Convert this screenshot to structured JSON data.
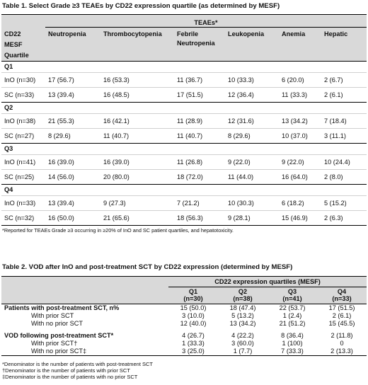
{
  "table1": {
    "title": "Table 1. Select Grade ≥3 TEAEs by CD22 expression quartile (as determined by MESF)",
    "teaes_label": "TEAEs*",
    "first_col_header": [
      "CD22",
      "MESF",
      "Quartile"
    ],
    "columns": [
      "Neutropenia",
      "Thrombocytopenia",
      "Febrile Neutropenia",
      "Leukopenia",
      "Anemia",
      "Hepatic"
    ],
    "groups": [
      {
        "quartile": "Q1",
        "rows": [
          {
            "arm": "InO (n=30)",
            "values": [
              "17 (56.7)",
              "16 (53.3)",
              "11 (36.7)",
              "10 (33.3)",
              "6 (20.0)",
              "2 (6.7)"
            ]
          },
          {
            "arm": "SC (n=33)",
            "values": [
              "13 (39.4)",
              "16 (48.5)",
              "17 (51.5)",
              "12 (36.4)",
              "11 (33.3)",
              "2 (6.1)"
            ]
          }
        ]
      },
      {
        "quartile": "Q2",
        "rows": [
          {
            "arm": "InO (n=38)",
            "values": [
              "21 (55.3)",
              "16 (42.1)",
              "11 (28.9)",
              "12 (31.6)",
              "13 (34.2)",
              "7 (18.4)"
            ]
          },
          {
            "arm": "SC (n=27)",
            "values": [
              "8 (29.6)",
              "11 (40.7)",
              "11 (40.7)",
              "8 (29.6)",
              "10 (37.0)",
              "3 (11.1)"
            ]
          }
        ]
      },
      {
        "quartile": "Q3",
        "rows": [
          {
            "arm": "InO (n=41)",
            "values": [
              "16 (39.0)",
              "16 (39.0)",
              "11 (26.8)",
              "9 (22.0)",
              "9 (22.0)",
              "10 (24.4)"
            ]
          },
          {
            "arm": "SC (n=25)",
            "values": [
              "14 (56.0)",
              "20 (80.0)",
              "18 (72.0)",
              "11 (44.0)",
              "16 (64.0)",
              "2 (8.0)"
            ]
          }
        ]
      },
      {
        "quartile": "Q4",
        "rows": [
          {
            "arm": "InO (n=33)",
            "values": [
              "13 (39.4)",
              "9 (27.3)",
              "7 (21.2)",
              "10 (30.3)",
              "6 (18.2)",
              "5 (15.2)"
            ]
          },
          {
            "arm": "SC (n=32)",
            "values": [
              "16 (50.0)",
              "21 (65.6)",
              "18 (56.3)",
              "9 (28.1)",
              "15 (46.9)",
              "2 (6.3)"
            ]
          }
        ]
      }
    ],
    "footnote": "*Reported for TEAEs Grade ≥3 occurring in ≥20% of InO and SC patient quartiles, and hepatotoxicity."
  },
  "table2": {
    "title": "Table 2. VOD after InO and post-treatment SCT by CD22 expression (determined by MESF)",
    "span_header": "CD22 expression quartiles (MESF)",
    "quartiles": [
      "Q1",
      "Q2",
      "Q3",
      "Q4"
    ],
    "ns": [
      "(n=30)",
      "(n=38)",
      "(n=41)",
      "(n=33)"
    ],
    "rows": [
      {
        "label": "Patients with post-treatment SCT, n%",
        "values": [
          "15 (50.0)",
          "18 (47.4)",
          "22 (53.7)",
          "17 (51.5)"
        ]
      },
      {
        "label": "With prior SCT",
        "values": [
          "3 (10.0)",
          "5 (13.2)",
          "1 (2.4)",
          "2 (6.1)"
        ]
      },
      {
        "label": "With no prior SCT",
        "values": [
          "12 (40.0)",
          "13 (34.2)",
          "21 (51.2)",
          "15 (45.5)"
        ]
      },
      {
        "label": "VOD following post-treatment SCT*",
        "values": [
          "4 (26.7)",
          "4 (22.2)",
          "8 (36.4)",
          "2 (11.8)"
        ]
      },
      {
        "label": "With prior SCT†",
        "values": [
          "1 (33.3)",
          "3 (60.0)",
          "1 (100)",
          "0"
        ]
      },
      {
        "label": "With no prior SCT‡",
        "values": [
          "3 (25.0)",
          "1 (7.7)",
          "7 (33.3)",
          "2 (13.3)"
        ]
      }
    ],
    "footnotes": [
      "*Denominator is the number of patients with post-treatment SCT",
      "†Denominator is the number of patients with prior SCT",
      "‡Denominator is the number of patients with no prior SCT"
    ]
  }
}
